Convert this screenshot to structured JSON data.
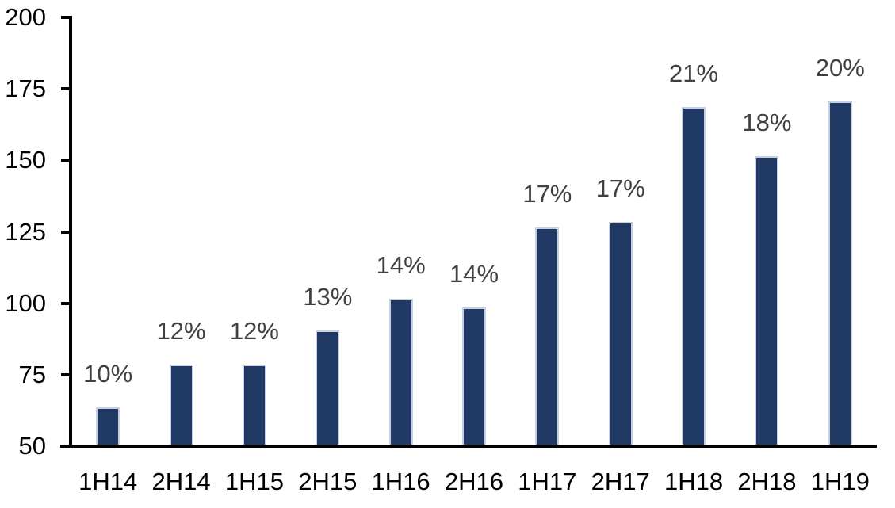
{
  "chart_data": {
    "type": "bar",
    "title": "",
    "xlabel": "",
    "ylabel": "",
    "categories": [
      "1H14",
      "2H14",
      "1H15",
      "2H15",
      "1H16",
      "2H16",
      "1H17",
      "2H17",
      "1H18",
      "2H18",
      "1H19"
    ],
    "values": [
      63,
      78,
      78,
      90,
      101,
      98,
      126,
      128,
      168,
      151,
      170
    ],
    "bar_labels": [
      "10%",
      "12%",
      "12%",
      "13%",
      "14%",
      "14%",
      "17%",
      "17%",
      "21%",
      "18%",
      "20%"
    ],
    "yticks": [
      50,
      75,
      100,
      125,
      150,
      175,
      200
    ],
    "ylim": [
      50,
      200
    ],
    "grid": false,
    "legend": false,
    "colors": {
      "bar_fill": "#1F3864",
      "bar_border": "#C6D0E0",
      "axis": "#000000",
      "tick_label": "#000000",
      "data_label": "#404040",
      "background": "#FFFFFF"
    }
  }
}
